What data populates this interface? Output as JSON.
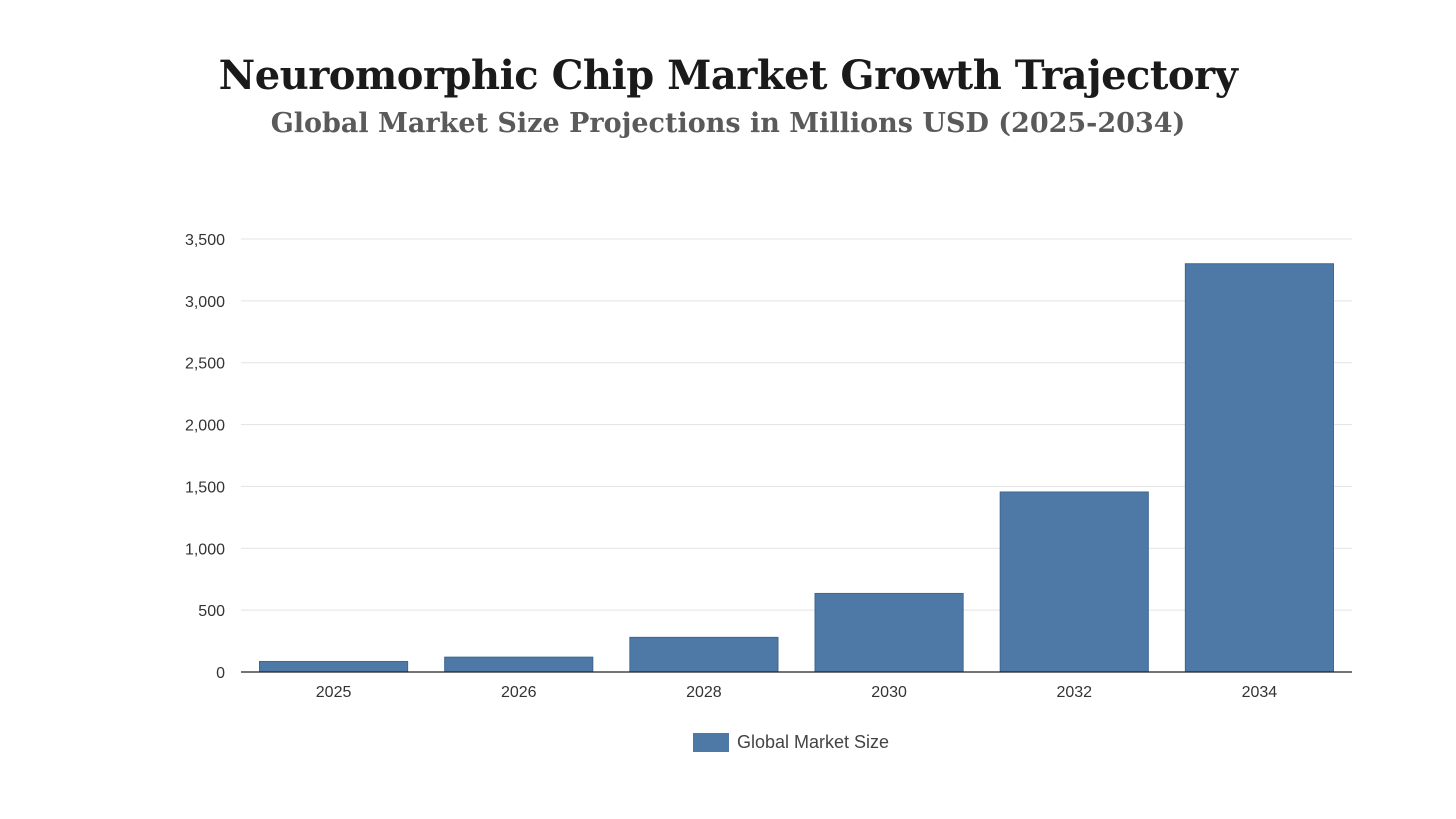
{
  "chart_data": {
    "type": "bar",
    "title": "Neuromorphic Chip Market Growth Trajectory",
    "subtitle": "Global Market Size Projections in Millions USD (2025-2034)",
    "categories": [
      "2025",
      "2026",
      "2028",
      "2030",
      "2032",
      "2034"
    ],
    "series": [
      {
        "name": "Global Market Size",
        "values": [
          85,
          120,
          280,
          635,
          1455,
          3300
        ],
        "color": "#4e79a7"
      }
    ],
    "ylim": [
      0,
      3500
    ],
    "yticks": [
      0,
      500,
      1000,
      1500,
      2000,
      2500,
      3000,
      3500
    ],
    "ytick_labels": [
      "0",
      "500",
      "1,000",
      "1,500",
      "2,000",
      "2,500",
      "3,000",
      "3,500"
    ],
    "grid": true,
    "legend_position": "bottom-center"
  }
}
